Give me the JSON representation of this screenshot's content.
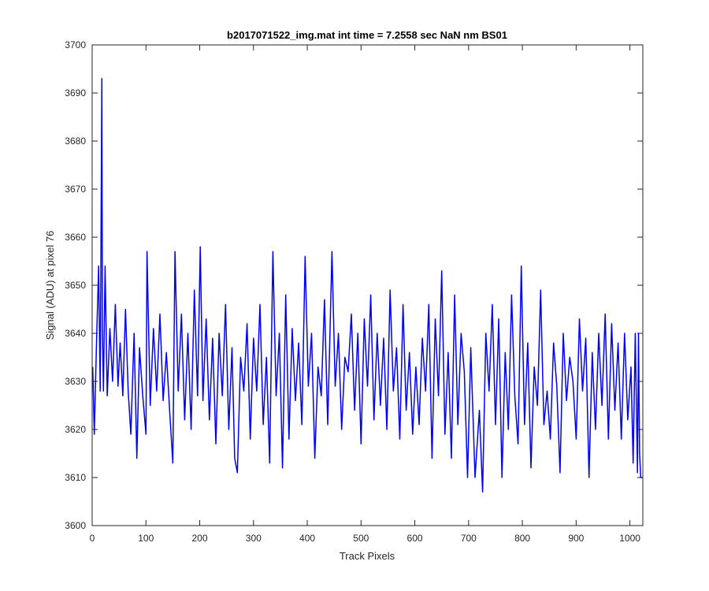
{
  "chart_data": {
    "type": "line",
    "title": "b2017071522_img.mat int time = 7.2558 sec  NaN nm BS01",
    "xlabel": "Track Pixels",
    "ylabel": "Signal (ADU) at pixel 76",
    "xlim": [
      0,
      1024
    ],
    "ylim": [
      3600,
      3700
    ],
    "xticks": [
      0,
      100,
      200,
      300,
      400,
      500,
      600,
      700,
      800,
      900,
      1000
    ],
    "yticks": [
      3600,
      3610,
      3620,
      3630,
      3640,
      3650,
      3660,
      3670,
      3680,
      3690,
      3700
    ],
    "grid": false,
    "legend": "none",
    "line_color": "#0000ff",
    "series": [
      {
        "x": [
          1,
          4,
          8,
          12,
          15,
          18,
          19,
          21,
          24,
          28,
          33,
          38,
          43,
          48,
          52,
          57,
          62,
          67,
          72,
          78,
          83,
          88,
          94,
          100,
          102,
          108,
          114,
          120,
          126,
          132,
          138,
          144,
          150,
          154,
          160,
          166,
          172,
          178,
          184,
          190,
          196,
          201,
          206,
          212,
          218,
          224,
          230,
          236,
          242,
          248,
          254,
          260,
          265,
          270,
          276,
          282,
          288,
          294,
          300,
          306,
          312,
          318,
          324,
          330,
          336,
          342,
          348,
          354,
          360,
          366,
          372,
          378,
          384,
          390,
          396,
          402,
          408,
          414,
          420,
          426,
          432,
          438,
          446,
          452,
          458,
          464,
          470,
          476,
          482,
          488,
          494,
          500,
          506,
          512,
          518,
          524,
          530,
          536,
          542,
          548,
          554,
          560,
          566,
          572,
          578,
          584,
          590,
          596,
          602,
          608,
          614,
          620,
          626,
          632,
          638,
          644,
          650,
          656,
          662,
          668,
          674,
          680,
          686,
          692,
          698,
          704,
          712,
          720,
          726,
          732,
          738,
          744,
          750,
          756,
          762,
          768,
          774,
          780,
          786,
          792,
          798,
          804,
          810,
          816,
          822,
          828,
          834,
          840,
          846,
          852,
          858,
          864,
          870,
          876,
          882,
          888,
          894,
          900,
          906,
          912,
          918,
          924,
          930,
          936,
          942,
          948,
          954,
          960,
          966,
          972,
          978,
          984,
          990,
          996,
          1002,
          1006,
          1010,
          1014,
          1016,
          1018,
          1020,
          1024
        ],
        "y": [
          3633,
          3619,
          3638,
          3654,
          3628,
          3693,
          3640,
          3628,
          3654,
          3627,
          3641,
          3630,
          3646,
          3629,
          3638,
          3627,
          3645,
          3628,
          3619,
          3640,
          3614,
          3637,
          3627,
          3619,
          3657,
          3625,
          3641,
          3628,
          3644,
          3626,
          3636,
          3624,
          3613,
          3657,
          3628,
          3644,
          3622,
          3640,
          3620,
          3649,
          3627,
          3658,
          3626,
          3643,
          3622,
          3639,
          3617,
          3640,
          3627,
          3646,
          3620,
          3637,
          3614,
          3611,
          3635,
          3628,
          3642,
          3618,
          3639,
          3628,
          3646,
          3621,
          3635,
          3613,
          3657,
          3627,
          3640,
          3612,
          3648,
          3618,
          3641,
          3626,
          3638,
          3621,
          3656,
          3629,
          3640,
          3614,
          3633,
          3627,
          3647,
          3621,
          3657,
          3629,
          3640,
          3620,
          3635,
          3632,
          3644,
          3624,
          3640,
          3617,
          3643,
          3629,
          3648,
          3622,
          3640,
          3625,
          3639,
          3620,
          3649,
          3628,
          3637,
          3618,
          3646,
          3624,
          3636,
          3619,
          3633,
          3621,
          3639,
          3628,
          3646,
          3614,
          3643,
          3627,
          3653,
          3619,
          3636,
          3614,
          3648,
          3621,
          3640,
          3632,
          3610,
          3637,
          3610,
          3624,
          3607,
          3640,
          3628,
          3646,
          3621,
          3643,
          3610,
          3636,
          3620,
          3648,
          3627,
          3617,
          3654,
          3621,
          3638,
          3612,
          3633,
          3625,
          3649,
          3621,
          3628,
          3618,
          3638,
          3629,
          3611,
          3640,
          3626,
          3635,
          3630,
          3618,
          3643,
          3628,
          3639,
          3610,
          3636,
          3620,
          3640,
          3625,
          3644,
          3618,
          3642,
          3624,
          3638,
          3618,
          3640,
          3622,
          3633,
          3613,
          3640,
          3611,
          3640,
          3615,
          3610,
          3610
        ]
      }
    ]
  }
}
